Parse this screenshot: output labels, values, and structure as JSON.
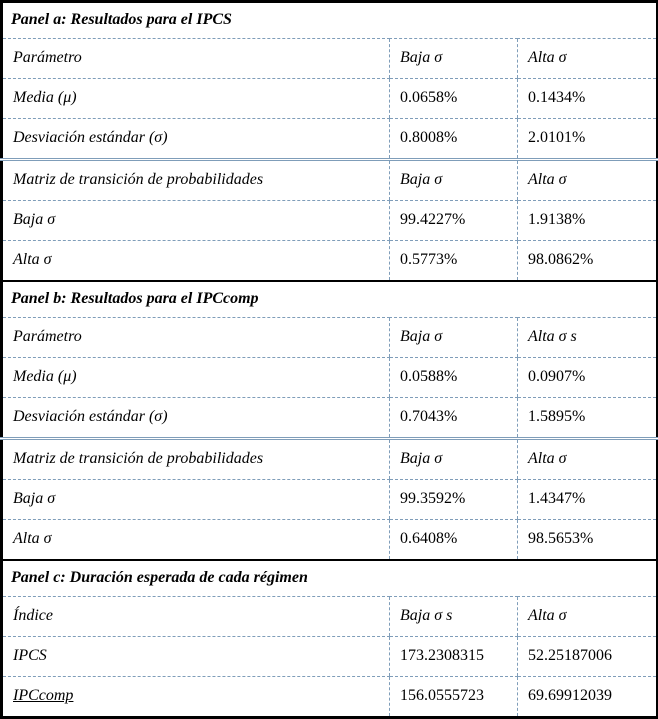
{
  "colors": {
    "outer_border": "#000000",
    "inner_dash": "#7f9db9",
    "text": "#000000",
    "background": "#ffffff"
  },
  "panels": [
    {
      "title": "Panel a: Resultados para el IPCS",
      "rows": [
        {
          "label": "Parámetro",
          "v1": "Baja σ",
          "v2": "Alta σ"
        },
        {
          "label": "Media (μ)",
          "v1": "0.0658%",
          "v2": "0.1434%"
        },
        {
          "label": "Desviación estándar (σ)",
          "v1": "0.8008%",
          "v2": "2.0101%"
        },
        {
          "label": "Matriz de transición de probabilidades",
          "v1": "Baja σ",
          "v2": "Alta σ"
        },
        {
          "label": "Baja σ",
          "v1": "99.4227%",
          "v2": "1.9138%"
        },
        {
          "label": "Alta σ",
          "v1": "0.5773%",
          "v2": "98.0862%"
        }
      ]
    },
    {
      "title": "Panel b: Resultados para el IPCcomp",
      "rows": [
        {
          "label": "Parámetro",
          "v1": "Baja σ",
          "v2": "Alta σ s"
        },
        {
          "label": "Media (μ)",
          "v1": "0.0588%",
          "v2": "0.0907%"
        },
        {
          "label": "Desviación estándar (σ)",
          "v1": "0.7043%",
          "v2": "1.5895%"
        },
        {
          "label": "Matriz de transición de probabilidades",
          "v1": "Baja σ",
          "v2": "Alta σ"
        },
        {
          "label": "Baja σ",
          "v1": "99.3592%",
          "v2": "1.4347%"
        },
        {
          "label": "Alta σ",
          "v1": "0.6408%",
          "v2": "98.5653%"
        }
      ]
    },
    {
      "title": "Panel c: Duración esperada de cada régimen",
      "rows": [
        {
          "label": "Índice",
          "v1": "Baja σ s",
          "v2": "Alta σ"
        },
        {
          "label": "IPCS",
          "v1": "173.2308315",
          "v2": "52.25187006"
        },
        {
          "label": "IPCcomp",
          "v1": "156.0555723",
          "v2": "69.69912039"
        }
      ]
    }
  ]
}
